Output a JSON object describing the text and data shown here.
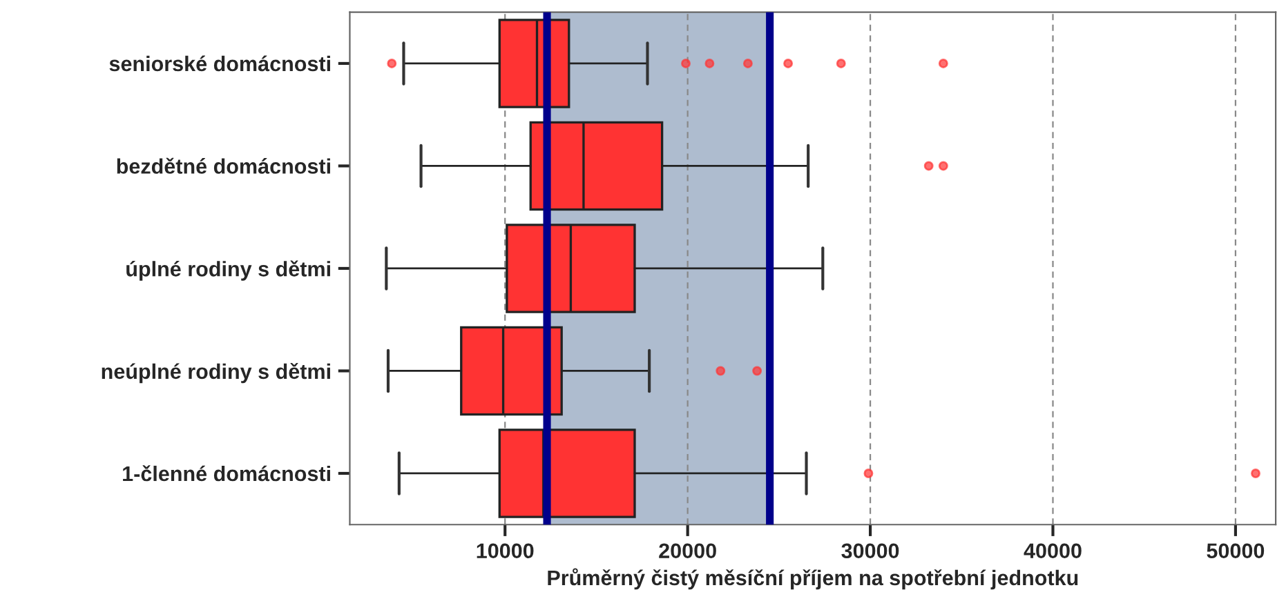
{
  "chart_data": {
    "type": "box",
    "orientation": "horizontal",
    "xlabel": "Průměrný čistý měsíční příjem na spotřební jednotku",
    "categories": [
      "seniorské domácnosti",
      "bezdětné domácnosti",
      "úplné rodiny s dětmi",
      "neúplné rodiny s dětmi",
      "1-členné domácnosti"
    ],
    "boxes": [
      {
        "low": 4450,
        "q1": 9700,
        "median": 11750,
        "q3": 13500,
        "high": 17800,
        "outliers": [
          3800,
          19900,
          21200,
          23300,
          25500,
          28400,
          34000
        ]
      },
      {
        "low": 5400,
        "q1": 11400,
        "median": 14300,
        "q3": 18600,
        "high": 26600,
        "outliers": [
          33200,
          34000
        ]
      },
      {
        "low": 3500,
        "q1": 10100,
        "median": 13600,
        "q3": 17100,
        "high": 27400
      },
      {
        "low": 3600,
        "q1": 7600,
        "median": 9900,
        "q3": 13100,
        "high": 17900,
        "outliers": [
          21800,
          23800
        ]
      },
      {
        "low": 4200,
        "q1": 9700,
        "median": 12100,
        "q3": 17100,
        "high": 26500,
        "outliers": [
          29900,
          51100
        ]
      }
    ],
    "color": "#ff3333",
    "xlim": [
      1500,
      52200
    ],
    "xticks": [
      10000,
      20000,
      30000,
      40000,
      50000
    ],
    "grid": "x",
    "bands": [
      {
        "axis": "x",
        "from": 12300,
        "to": 24500,
        "color": "#aebccf"
      }
    ],
    "ref_lines": [
      {
        "axis": "x",
        "value": 12300,
        "color": "#00008b"
      },
      {
        "axis": "x",
        "value": 24500,
        "color": "#00008b"
      }
    ]
  }
}
